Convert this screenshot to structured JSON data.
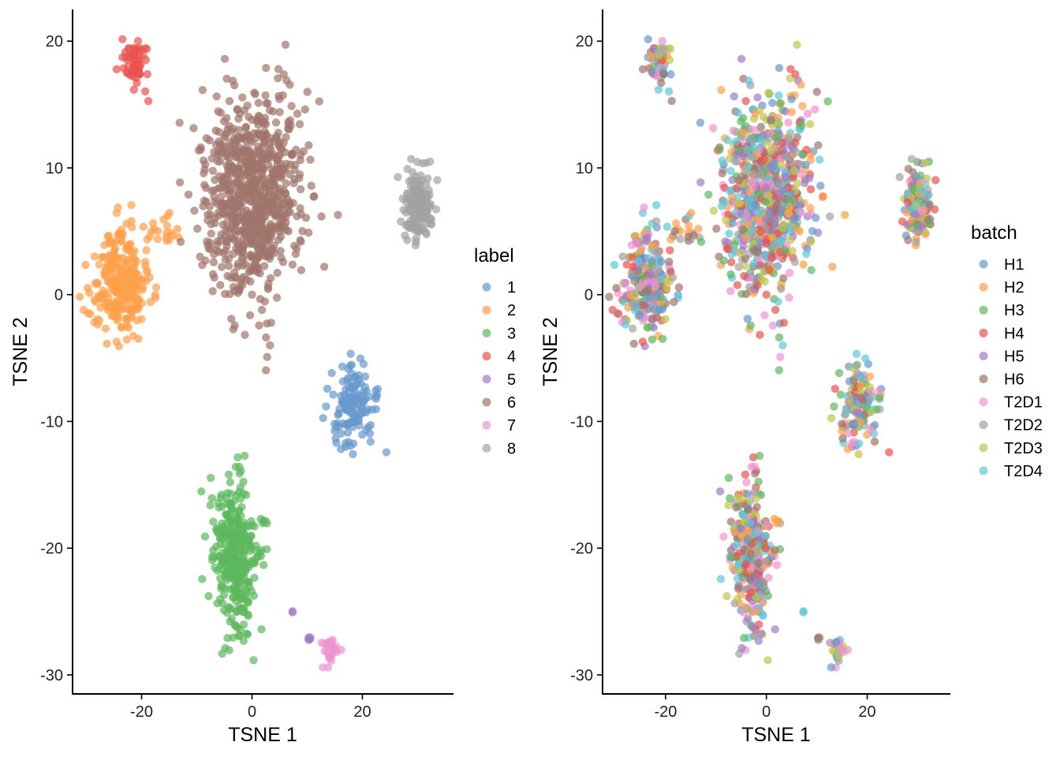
{
  "chart_data": [
    {
      "type": "scatter",
      "title": "",
      "xlabel": "TSNE 1",
      "ylabel": "TSNE 2",
      "xlim": [
        -32.5,
        36.5
      ],
      "ylim": [
        -31.5,
        22.5
      ],
      "xticks": [
        -20,
        0,
        20
      ],
      "xtick_labels": [
        "-20",
        "0",
        "20"
      ],
      "yticks": [
        -30,
        -20,
        -10,
        0,
        10,
        20
      ],
      "ytick_labels": [
        "-30",
        "-20",
        "-10",
        "0",
        "10",
        "20"
      ],
      "point_alpha": 0.7,
      "grid": false,
      "legend": {
        "title": "label",
        "position": "right",
        "entries": [
          {
            "name": "1",
            "color": "#6699CC"
          },
          {
            "name": "2",
            "color": "#FFA04A"
          },
          {
            "name": "3",
            "color": "#5CB85C"
          },
          {
            "name": "4",
            "color": "#E8524F"
          },
          {
            "name": "5",
            "color": "#A07DC8"
          },
          {
            "name": "6",
            "color": "#A0756B"
          },
          {
            "name": "7",
            "color": "#EE93CF"
          },
          {
            "name": "8",
            "color": "#A3A3A3"
          }
        ]
      },
      "clusters": [
        {
          "label": "1",
          "cx": 18,
          "cy": -9,
          "sx": 2.2,
          "sy": 1.8,
          "n": 130
        },
        {
          "label": "2",
          "cx": -24,
          "cy": 1,
          "sx": 2.5,
          "sy": 2.0,
          "n": 260
        },
        {
          "label": "2",
          "cx": -17,
          "cy": 5,
          "sx": 1.8,
          "sy": 0.8,
          "n": 20
        },
        {
          "label": "3",
          "cx": -3,
          "cy": -21,
          "sx": 2.0,
          "sy": 3.2,
          "n": 330
        },
        {
          "label": "3",
          "cx": 2.5,
          "cy": -17.8,
          "sx": 0.3,
          "sy": 0.2,
          "n": 4
        },
        {
          "label": "4",
          "cx": -21,
          "cy": 18.3,
          "sx": 1.1,
          "sy": 1.0,
          "n": 60
        },
        {
          "label": "5",
          "cx": 7.2,
          "cy": -25,
          "sx": 0.15,
          "sy": 0.15,
          "n": 2
        },
        {
          "label": "5",
          "cx": 10.5,
          "cy": -27.3,
          "sx": 0.3,
          "sy": 0.2,
          "n": 5
        },
        {
          "label": "6",
          "cx": 0,
          "cy": 8,
          "sx": 4.5,
          "sy": 4.0,
          "n": 800
        },
        {
          "label": "7",
          "cx": 14,
          "cy": -28,
          "sx": 0.8,
          "sy": 0.6,
          "n": 30
        },
        {
          "label": "8",
          "cx": 30,
          "cy": 7,
          "sx": 1.3,
          "sy": 1.4,
          "n": 170
        }
      ]
    },
    {
      "type": "scatter",
      "title": "",
      "xlabel": "TSNE 1",
      "ylabel": "TSNE 2",
      "xlim": [
        -32.5,
        36.5
      ],
      "ylim": [
        -31.5,
        22.5
      ],
      "xticks": [
        -20,
        0,
        20
      ],
      "xtick_labels": [
        "-20",
        "0",
        "20"
      ],
      "yticks": [
        -30,
        -20,
        -10,
        0,
        10,
        20
      ],
      "ytick_labels": [
        "-30",
        "-20",
        "-10",
        "0",
        "10",
        "20"
      ],
      "point_alpha": 0.7,
      "grid": false,
      "legend": {
        "title": "batch",
        "position": "right",
        "entries": [
          {
            "name": "H1",
            "color": "#6699CC"
          },
          {
            "name": "H2",
            "color": "#FFA04A"
          },
          {
            "name": "H3",
            "color": "#5CB85C"
          },
          {
            "name": "H4",
            "color": "#E8524F"
          },
          {
            "name": "H5",
            "color": "#A07DC8"
          },
          {
            "name": "H6",
            "color": "#A0756B"
          },
          {
            "name": "T2D1",
            "color": "#EE93CF"
          },
          {
            "name": "T2D2",
            "color": "#A3A3A3"
          },
          {
            "name": "T2D3",
            "color": "#BFC64A"
          },
          {
            "name": "T2D4",
            "color": "#5CC8D8"
          }
        ]
      },
      "clusters": [
        {
          "mix": [
            "H1",
            "H2",
            "H3",
            "H4",
            "H5",
            "H6",
            "T2D1",
            "T2D2",
            "T2D3",
            "T2D4"
          ],
          "cx": 18,
          "cy": -9,
          "sx": 2.2,
          "sy": 1.8,
          "n": 130
        },
        {
          "mix": [
            "H1",
            "H2",
            "H3",
            "H4",
            "H5",
            "H6",
            "T2D1",
            "T2D2",
            "T2D3",
            "T2D4"
          ],
          "cx": -24,
          "cy": 1,
          "sx": 2.5,
          "sy": 2.0,
          "n": 260
        },
        {
          "mix": [
            "H2",
            "H6",
            "T2D2",
            "T2D4"
          ],
          "cx": -17,
          "cy": 5,
          "sx": 1.8,
          "sy": 0.8,
          "n": 20
        },
        {
          "mix": [
            "H1",
            "H2",
            "H3",
            "H4",
            "H5",
            "H6",
            "T2D1",
            "T2D2",
            "T2D3",
            "T2D4"
          ],
          "cx": -3,
          "cy": -21,
          "sx": 2.0,
          "sy": 3.2,
          "n": 330
        },
        {
          "mix": [
            "H2",
            "T2D2"
          ],
          "cx": 2.5,
          "cy": -17.8,
          "sx": 0.3,
          "sy": 0.2,
          "n": 4
        },
        {
          "mix": [
            "H1",
            "H2",
            "H3",
            "H4",
            "H5",
            "H6",
            "T2D1",
            "T2D2",
            "T2D3",
            "T2D4"
          ],
          "cx": -21,
          "cy": 18.3,
          "sx": 1.1,
          "sy": 1.0,
          "n": 60
        },
        {
          "mix": [
            "T2D4"
          ],
          "cx": 7.2,
          "cy": -25,
          "sx": 0.15,
          "sy": 0.15,
          "n": 2
        },
        {
          "mix": [
            "H6",
            "T2D3",
            "T2D2"
          ],
          "cx": 10.5,
          "cy": -27.3,
          "sx": 0.3,
          "sy": 0.2,
          "n": 5
        },
        {
          "mix": [
            "H1",
            "H2",
            "H3",
            "H4",
            "H5",
            "H6",
            "T2D1",
            "T2D2",
            "T2D3",
            "T2D4"
          ],
          "cx": 0,
          "cy": 8,
          "sx": 4.5,
          "sy": 4.0,
          "n": 800
        },
        {
          "mix": [
            "H1",
            "T2D1",
            "T2D2",
            "T2D3",
            "T2D4"
          ],
          "cx": 14,
          "cy": -28,
          "sx": 0.8,
          "sy": 0.6,
          "n": 30
        },
        {
          "mix": [
            "H1",
            "H2",
            "H3",
            "H4",
            "H5",
            "H6",
            "T2D1",
            "T2D2",
            "T2D3",
            "T2D4"
          ],
          "cx": 30,
          "cy": 7,
          "sx": 1.3,
          "sy": 1.4,
          "n": 170
        }
      ]
    }
  ]
}
